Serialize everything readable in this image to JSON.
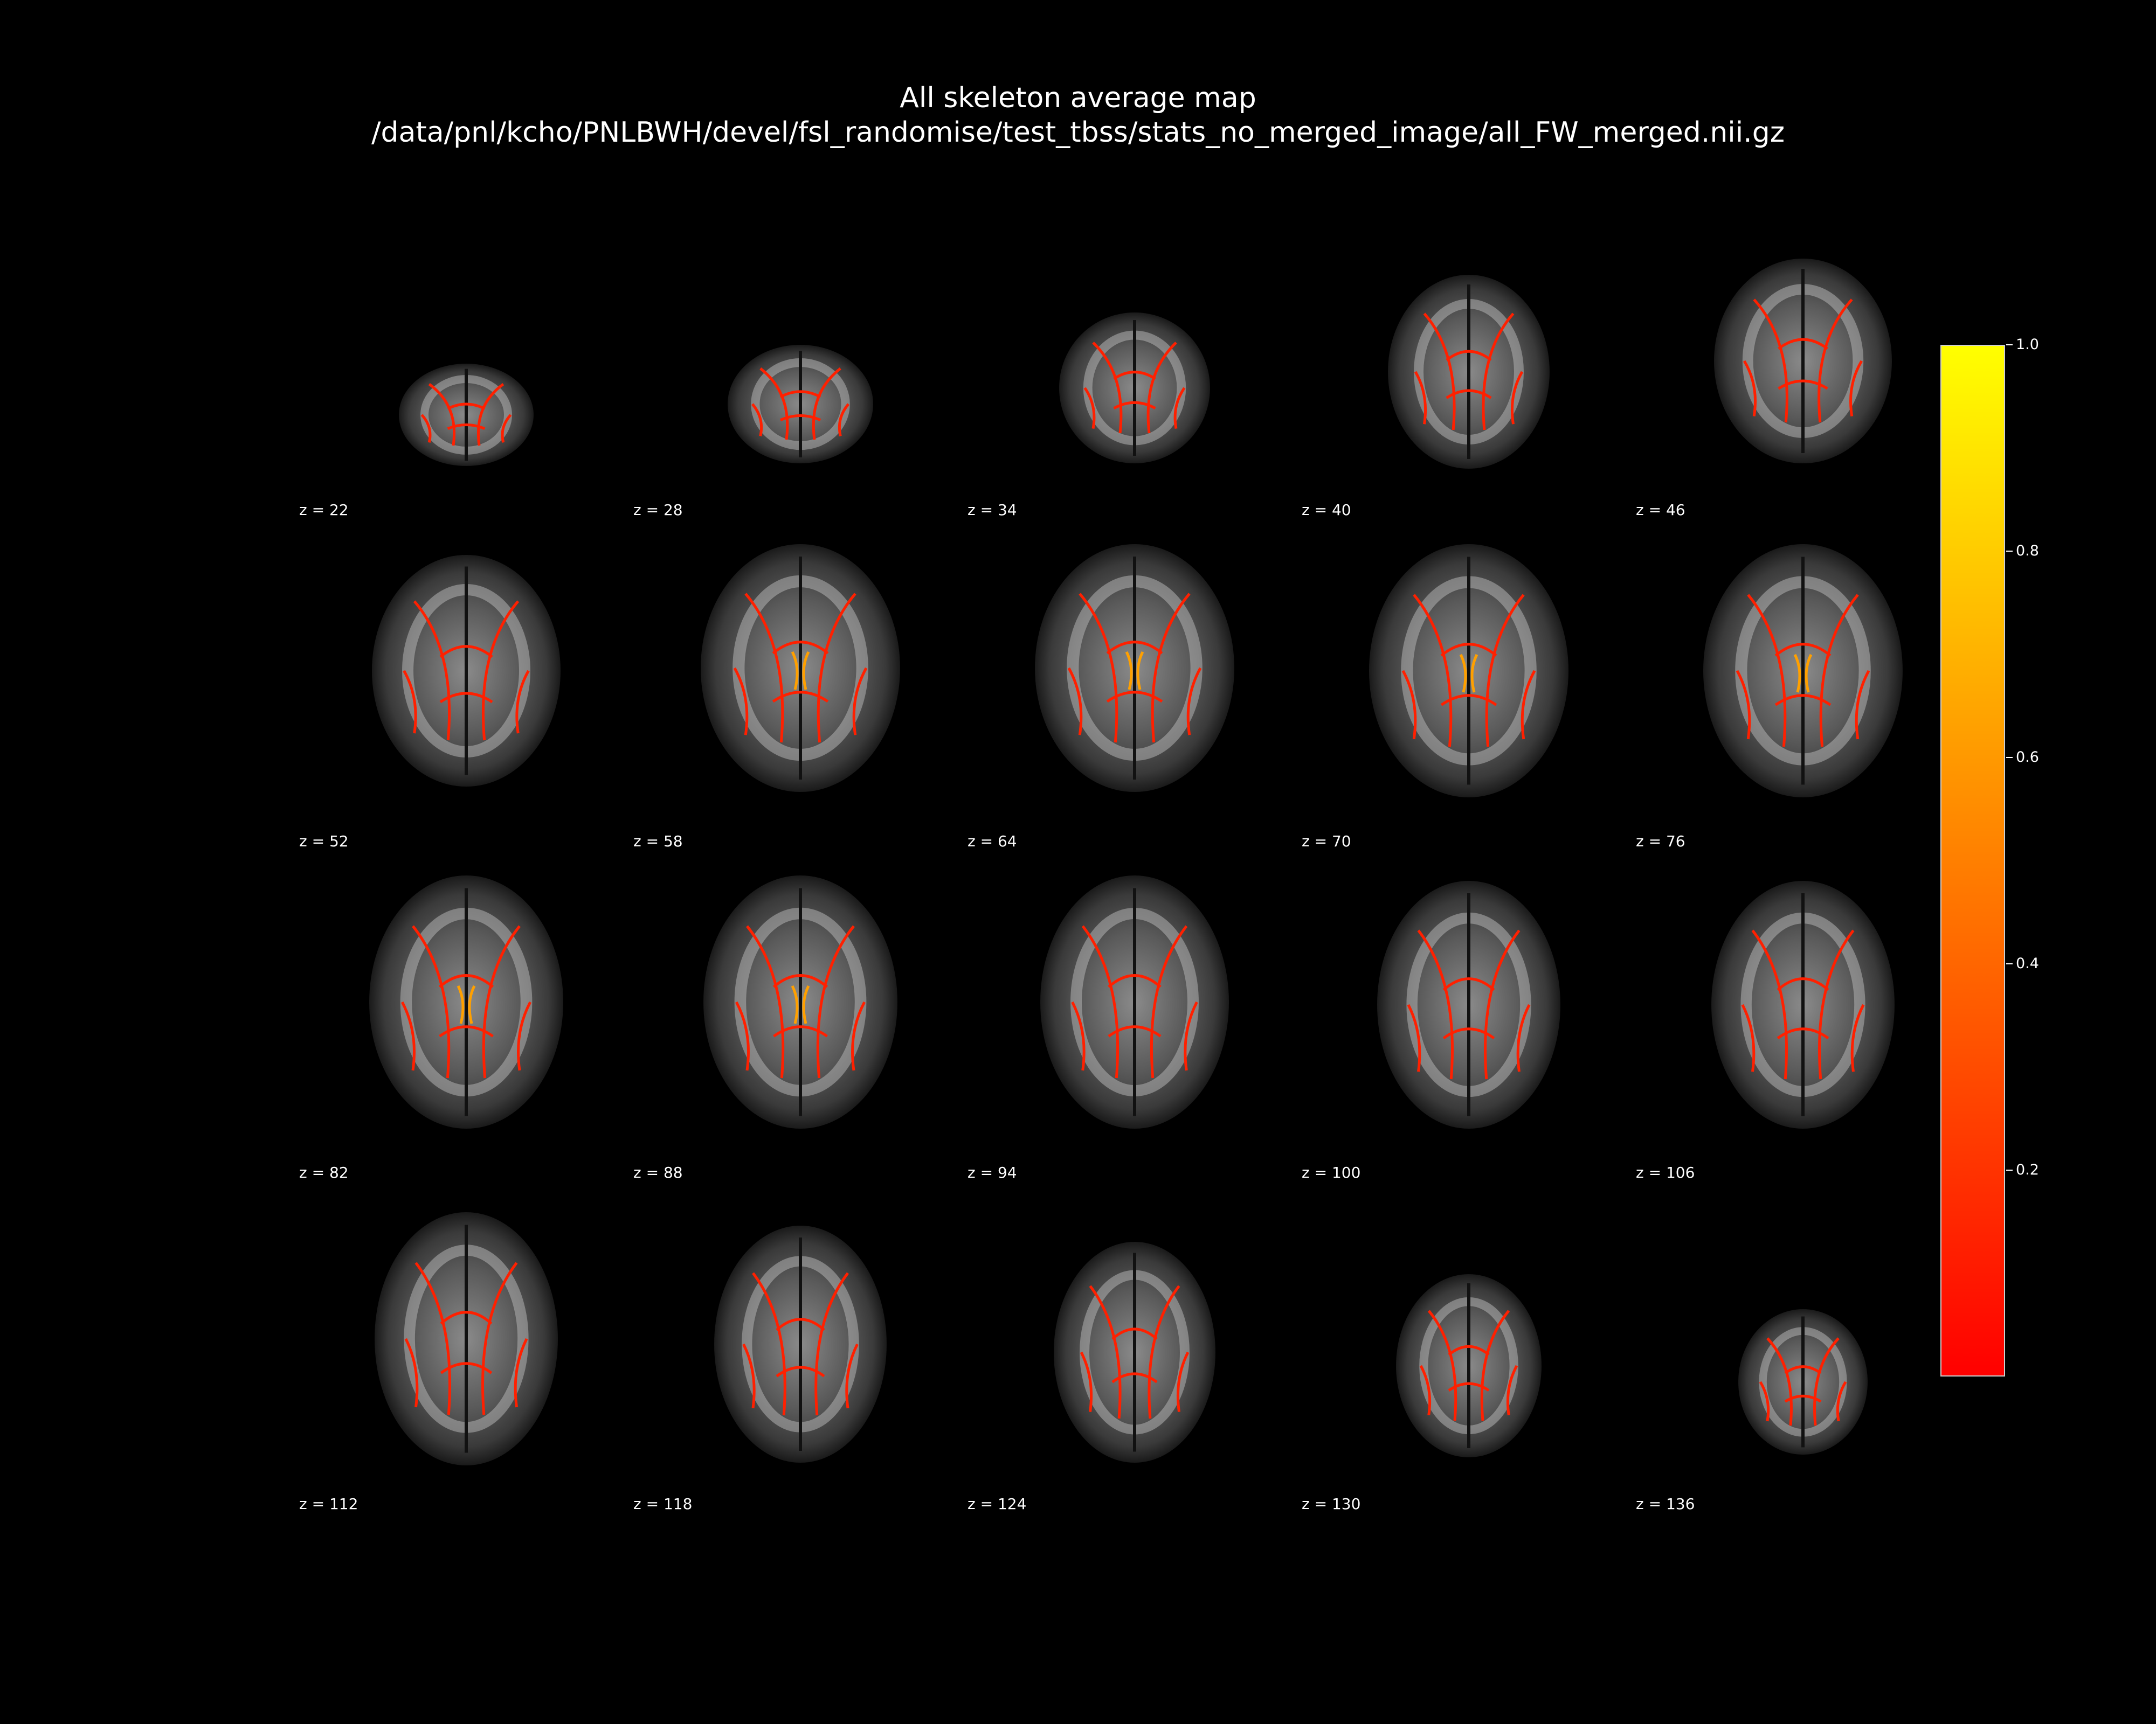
{
  "title": {
    "line1": "All skeleton average map",
    "line2": "/data/pnl/kcho/PNLBWH/devel/fsl_randomise/test_tbss/stats_no_merged_image/all_FW_merged.nii.gz"
  },
  "colors": {
    "background": "#000000",
    "text": "#ffffff",
    "colormap_low": "#ff0000",
    "colormap_mid": "#ff8c00",
    "colormap_high": "#ffff00"
  },
  "slices": [
    {
      "label": "z = 22",
      "z": 22
    },
    {
      "label": "z = 28",
      "z": 28
    },
    {
      "label": "z = 34",
      "z": 34
    },
    {
      "label": "z = 40",
      "z": 40
    },
    {
      "label": "z = 46",
      "z": 46
    },
    {
      "label": "z = 52",
      "z": 52
    },
    {
      "label": "z = 58",
      "z": 58
    },
    {
      "label": "z = 64",
      "z": 64
    },
    {
      "label": "z = 70",
      "z": 70
    },
    {
      "label": "z = 76",
      "z": 76
    },
    {
      "label": "z = 82",
      "z": 82
    },
    {
      "label": "z = 88",
      "z": 88
    },
    {
      "label": "z = 94",
      "z": 94
    },
    {
      "label": "z = 100",
      "z": 100
    },
    {
      "label": "z = 106",
      "z": 106
    },
    {
      "label": "z = 112",
      "z": 112
    },
    {
      "label": "z = 118",
      "z": 118
    },
    {
      "label": "z = 124",
      "z": 124
    },
    {
      "label": "z = 130",
      "z": 130
    },
    {
      "label": "z = 136",
      "z": 136
    }
  ],
  "colorbar": {
    "min": 0.0,
    "max": 1.0,
    "ticks": [
      {
        "value": 1.0,
        "label": "1.0"
      },
      {
        "value": 0.8,
        "label": "0.8"
      },
      {
        "value": 0.6,
        "label": "0.6"
      },
      {
        "value": 0.4,
        "label": "0.4"
      },
      {
        "value": 0.2,
        "label": "0.2"
      }
    ]
  }
}
